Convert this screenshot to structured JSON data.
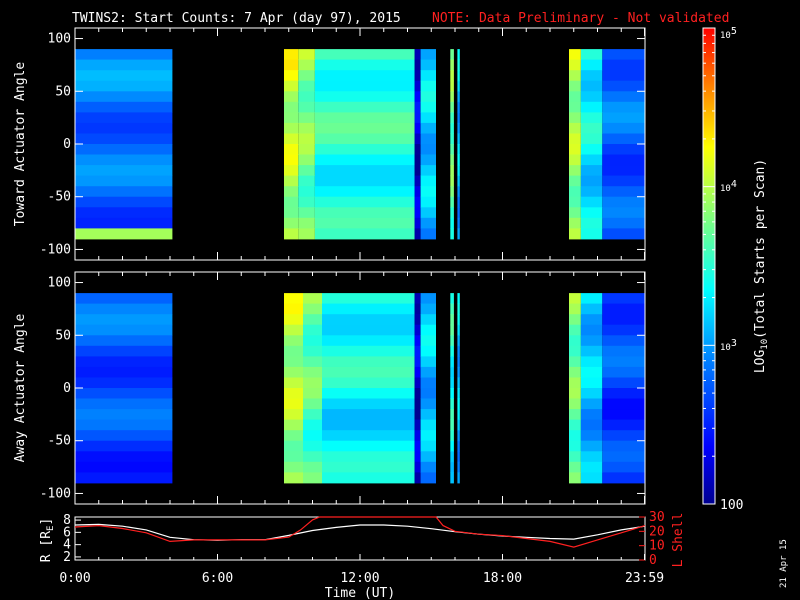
{
  "title": {
    "main": "TWINS2: Start Counts:  7 Apr (day  97), 2015",
    "note": "NOTE: Data Preliminary - Not validated"
  },
  "footer": {
    "stamp": "21 Apr 15"
  },
  "colors": {
    "background": "#000000",
    "axis": "#ffffff",
    "note": "#ff2020",
    "r_line": "#ffffff",
    "lshell_line": "#ff2020"
  },
  "chart_data": [
    {
      "type": "heatmap",
      "panel": "toward",
      "ylabel": "Toward Actuator Angle",
      "ylim": [
        -110,
        110
      ],
      "yticks": [
        100,
        50,
        0,
        -50,
        -100
      ],
      "x_range_hours": [
        0,
        24
      ],
      "data_angle_range": [
        -90,
        90
      ],
      "segments": [
        {
          "start": 0.0,
          "end": 4.1,
          "level": 0.3
        },
        {
          "start": 8.8,
          "end": 9.4,
          "level": 0.7
        },
        {
          "start": 9.4,
          "end": 10.1,
          "level": 0.62
        },
        {
          "start": 10.1,
          "end": 14.3,
          "level": 0.52
        },
        {
          "start": 14.3,
          "end": 14.55,
          "level": 0.1
        },
        {
          "start": 14.55,
          "end": 15.2,
          "level": 0.42
        },
        {
          "start": 15.8,
          "end": 15.95,
          "level": 0.6
        },
        {
          "start": 16.1,
          "end": 16.2,
          "level": 0.4
        },
        {
          "start": 20.8,
          "end": 21.3,
          "level": 0.66
        },
        {
          "start": 21.3,
          "end": 22.2,
          "level": 0.46
        },
        {
          "start": 22.2,
          "end": 24.0,
          "level": 0.28
        }
      ]
    },
    {
      "type": "heatmap",
      "panel": "away",
      "ylabel": "Away Actuator Angle",
      "ylim": [
        -110,
        110
      ],
      "yticks": [
        100,
        50,
        0,
        -50,
        -100
      ],
      "x_range_hours": [
        0,
        24
      ],
      "data_angle_range": [
        -90,
        90
      ],
      "segments": [
        {
          "start": 0.0,
          "end": 4.1,
          "level": 0.26
        },
        {
          "start": 8.8,
          "end": 9.6,
          "level": 0.68
        },
        {
          "start": 9.6,
          "end": 10.4,
          "level": 0.58
        },
        {
          "start": 10.4,
          "end": 14.3,
          "level": 0.48
        },
        {
          "start": 14.3,
          "end": 14.55,
          "level": 0.1
        },
        {
          "start": 14.55,
          "end": 15.2,
          "level": 0.4
        },
        {
          "start": 15.8,
          "end": 15.95,
          "level": 0.5
        },
        {
          "start": 16.1,
          "end": 16.2,
          "level": 0.4
        },
        {
          "start": 20.8,
          "end": 21.3,
          "level": 0.6
        },
        {
          "start": 21.3,
          "end": 22.2,
          "level": 0.4
        },
        {
          "start": 22.2,
          "end": 24.0,
          "level": 0.24
        }
      ]
    },
    {
      "type": "line",
      "panel": "ephemeris",
      "xlabel": "Time (UT)",
      "xticks": [
        "0:00",
        "6:00",
        "12:00",
        "18:00",
        "23:59"
      ],
      "xtick_hours": [
        0,
        6,
        12,
        18,
        23.98
      ],
      "ylabel_left": "R [R",
      "ylabel_left_sub": "E",
      "ylabel_left_close": "]",
      "ylim_left": [
        1.5,
        8.5
      ],
      "yticks_left": [
        2,
        4,
        6,
        8
      ],
      "ylabel_right": "L Shell",
      "ylim_right": [
        0,
        30
      ],
      "yticks_right": [
        0,
        10,
        20,
        30
      ],
      "series": [
        {
          "axis": "left",
          "x": [
            0,
            1,
            2,
            3,
            4,
            5,
            6,
            7,
            8,
            9,
            10,
            11,
            12,
            13,
            14,
            15,
            16,
            17,
            18,
            19,
            20,
            21,
            22,
            23,
            24
          ],
          "y": [
            7.2,
            7.3,
            7.0,
            6.4,
            5.2,
            4.8,
            4.7,
            4.8,
            4.8,
            5.5,
            6.3,
            6.8,
            7.2,
            7.2,
            7.0,
            6.6,
            6.1,
            5.7,
            5.4,
            5.2,
            5.0,
            4.9,
            5.6,
            6.4,
            7.0
          ]
        },
        {
          "axis": "right",
          "x": [
            0,
            1,
            2,
            3,
            4,
            5,
            6,
            7,
            8,
            9,
            9.5,
            10,
            10.3,
            15.2,
            15.5,
            16,
            17,
            18,
            19,
            20,
            21,
            22,
            23,
            24
          ],
          "y": [
            23,
            24,
            22,
            19,
            13,
            14,
            14,
            14,
            14,
            16,
            21,
            28,
            31,
            31,
            24,
            20,
            18,
            17,
            15,
            13,
            9,
            14,
            19,
            24
          ]
        }
      ]
    }
  ],
  "colorbar": {
    "label_pre": "LOG",
    "label_sub": "10",
    "label_post": "(Total Starts per Scan)",
    "scale": "log",
    "range": [
      100,
      100000
    ],
    "ticks": [
      "100",
      "10",
      "3",
      "10",
      "4",
      "10",
      "5"
    ],
    "tick_values": [
      100,
      1000,
      10000,
      100000
    ]
  }
}
